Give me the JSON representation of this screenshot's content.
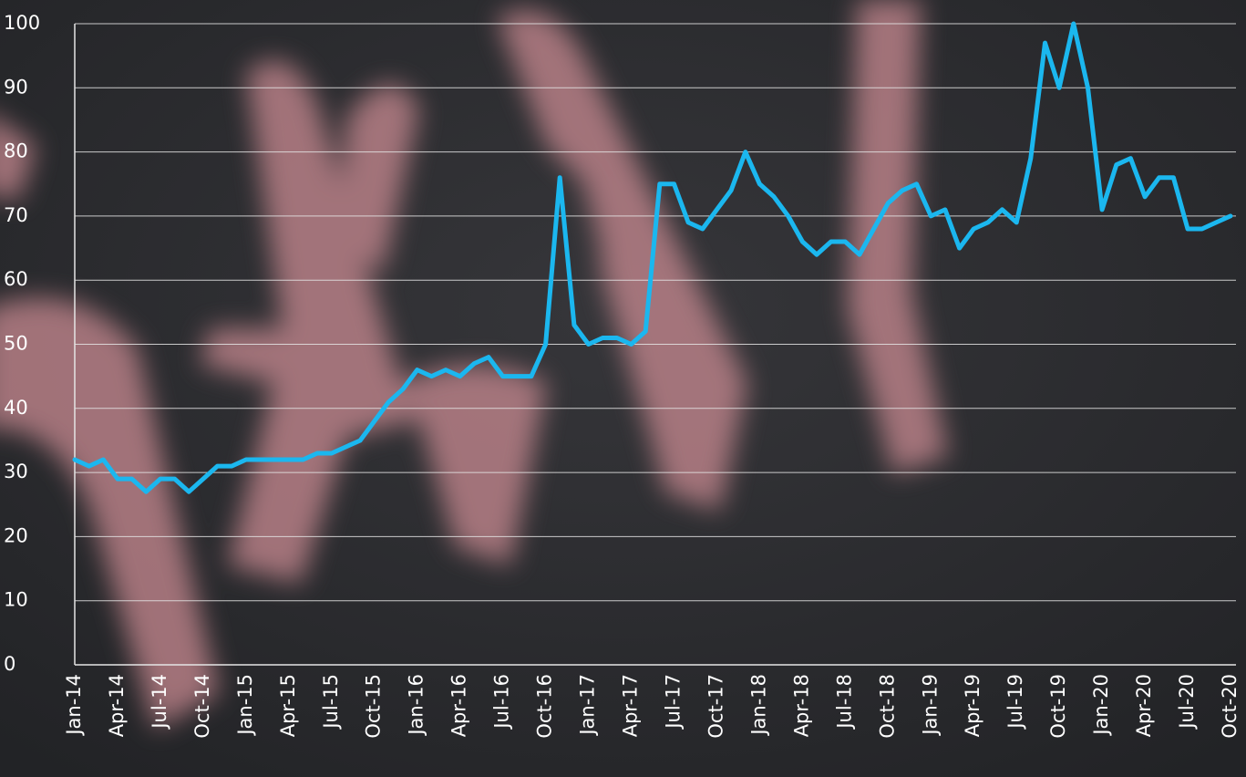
{
  "chart_data": {
    "type": "line",
    "categories": [
      "Jan-14",
      null,
      null,
      "Apr-14",
      null,
      null,
      "Jul-14",
      null,
      null,
      "Oct-14",
      null,
      null,
      "Jan-15",
      null,
      null,
      "Apr-15",
      null,
      null,
      "Jul-15",
      null,
      null,
      "Oct-15",
      null,
      null,
      "Jan-16",
      null,
      null,
      "Apr-16",
      null,
      null,
      "Jul-16",
      null,
      null,
      "Oct-16",
      null,
      null,
      "Jan-17",
      null,
      null,
      "Apr-17",
      null,
      null,
      "Jul-17",
      null,
      null,
      "Oct-17",
      null,
      null,
      "Jan-18",
      null,
      null,
      "Apr-18",
      null,
      null,
      "Jul-18",
      null,
      null,
      "Oct-18",
      null,
      null,
      "Jan-19",
      null,
      null,
      "Apr-19",
      null,
      null,
      "Jul-19",
      null,
      null,
      "Oct-19",
      null,
      null,
      "Jan-20",
      null,
      null,
      "Apr-20",
      null,
      null,
      "Jul-20",
      null,
      null,
      "Oct-20"
    ],
    "series": [
      {
        "color": "#1bb7ef",
        "values": [
          32,
          31,
          32,
          29,
          29,
          27,
          29,
          29,
          27,
          29,
          31,
          31,
          32,
          32,
          32,
          32,
          32,
          33,
          33,
          34,
          35,
          38,
          41,
          43,
          46,
          45,
          46,
          45,
          47,
          48,
          45,
          45,
          45,
          50,
          76,
          53,
          50,
          51,
          51,
          50,
          52,
          75,
          75,
          69,
          68,
          71,
          74,
          80,
          75,
          73,
          70,
          66,
          64,
          66,
          66,
          64,
          68,
          72,
          74,
          75,
          70,
          71,
          65,
          68,
          69,
          71,
          69,
          79,
          97,
          90,
          100,
          90,
          71,
          78,
          79,
          73,
          76,
          76,
          68,
          68,
          69,
          70
        ]
      }
    ],
    "ylim": [
      0,
      100
    ],
    "yticks": [
      0,
      10,
      20,
      30,
      40,
      50,
      60,
      70,
      80,
      90,
      100
    ],
    "grid": true
  }
}
